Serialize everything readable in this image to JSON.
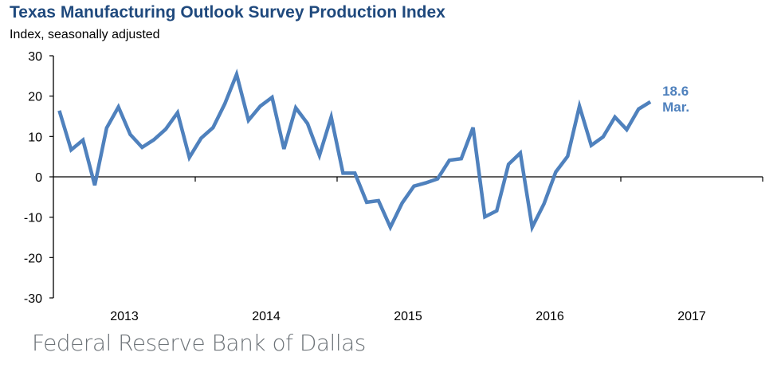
{
  "chart_data": {
    "type": "line",
    "title": "Texas Manufacturing Outlook Survey Production Index",
    "subtitle": "Index, seasonally adjusted",
    "xlabel": "",
    "ylabel": "Index, seasonally adjusted",
    "ylim": [
      -30,
      30
    ],
    "yticks": [
      30,
      20,
      10,
      0,
      -10,
      -20,
      -30
    ],
    "x_range": [
      "2013-01",
      "2017-12"
    ],
    "xtick_labels": [
      "2013",
      "2014",
      "2015",
      "2016",
      "2017"
    ],
    "grid": false,
    "legend": null,
    "series": [
      {
        "name": "Production Index",
        "color": "#4F81BD",
        "x": [
          "2013-01",
          "2013-02",
          "2013-03",
          "2013-04",
          "2013-05",
          "2013-06",
          "2013-07",
          "2013-08",
          "2013-09",
          "2013-10",
          "2013-11",
          "2013-12",
          "2014-01",
          "2014-02",
          "2014-03",
          "2014-04",
          "2014-05",
          "2014-06",
          "2014-07",
          "2014-08",
          "2014-09",
          "2014-10",
          "2014-11",
          "2014-12",
          "2015-01",
          "2015-02",
          "2015-03",
          "2015-04",
          "2015-05",
          "2015-06",
          "2015-07",
          "2015-08",
          "2015-09",
          "2015-10",
          "2015-11",
          "2015-12",
          "2016-01",
          "2016-02",
          "2016-03",
          "2016-04",
          "2016-05",
          "2016-06",
          "2016-07",
          "2016-08",
          "2016-09",
          "2016-10",
          "2016-11",
          "2016-12",
          "2017-01",
          "2017-02",
          "2017-03"
        ],
        "values": [
          16.4,
          6.7,
          9.1,
          -2.1,
          12.1,
          17.3,
          10.5,
          7.3,
          9.2,
          11.8,
          15.9,
          4.8,
          9.6,
          12.2,
          18.1,
          25.4,
          14.0,
          17.5,
          19.7,
          6.9,
          17.1,
          13.2,
          5.3,
          14.8,
          0.9,
          0.9,
          -6.3,
          -5.9,
          -12.5,
          -6.5,
          -2.3,
          -1.5,
          -0.5,
          4.1,
          4.5,
          12.2,
          -9.9,
          -8.4,
          3.1,
          5.9,
          -12.5,
          -6.7,
          1.2,
          5.1,
          17.5,
          7.8,
          9.9,
          14.8,
          11.7,
          16.8,
          18.6
        ]
      }
    ],
    "annotations": [
      {
        "target": "last-point",
        "value_label": "18.6",
        "period_label": "Mar.",
        "color": "#4F81BD"
      }
    ]
  },
  "footer": {
    "source": "Federal Reserve Bank of Dallas"
  }
}
